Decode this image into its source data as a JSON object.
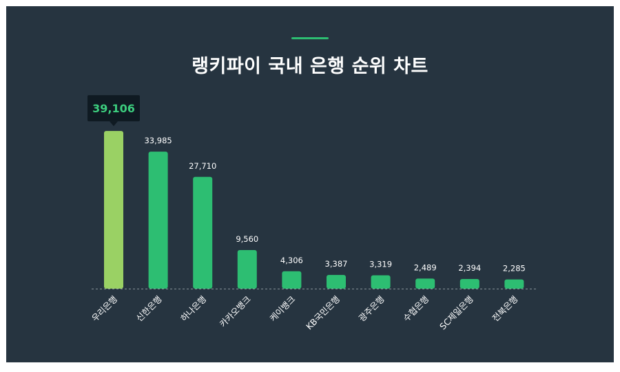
{
  "title": "랭키파이 국내 은행 순위 차트",
  "colors": {
    "background": "#263440",
    "bar": "#2dbe72",
    "bar_highlight": "#9ad164",
    "accent": "#2dbe72",
    "tooltip_bg": "#0f1a22",
    "tooltip_text": "#3ccd7e",
    "baseline": "#8a959c"
  },
  "chart_data": {
    "type": "bar",
    "title": "랭키파이 국내 은행 순위 차트",
    "categories": [
      "우리은행",
      "신한은행",
      "하나은행",
      "카카오뱅크",
      "케이뱅크",
      "KB국민은행",
      "광주은행",
      "수협은행",
      "SC제일은행",
      "전북은행"
    ],
    "values": [
      39106,
      33985,
      27710,
      9560,
      4306,
      3387,
      3319,
      2489,
      2394,
      2285
    ],
    "value_labels": [
      "39,106",
      "33,985",
      "27,710",
      "9,560",
      "4,306",
      "3,387",
      "3,319",
      "2,489",
      "2,394",
      "2,285"
    ],
    "highlighted_index": 0,
    "ylim": [
      0,
      41000
    ],
    "grid": false,
    "legend": "none",
    "xlabel": "",
    "ylabel": ""
  }
}
